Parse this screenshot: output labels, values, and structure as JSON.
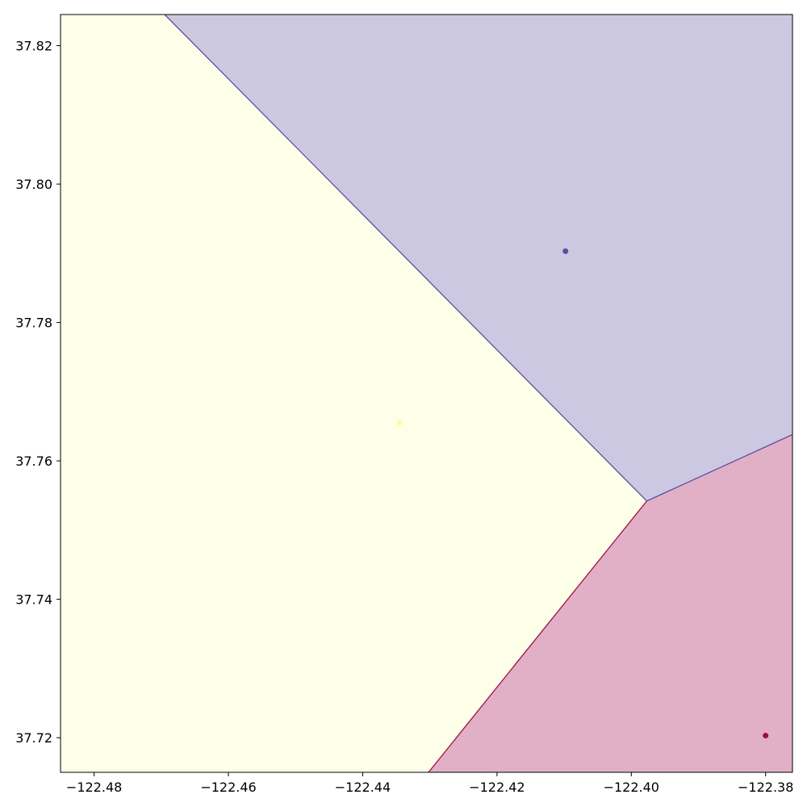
{
  "chart_data": {
    "type": "scatter",
    "subtype": "voronoi-map",
    "title": "",
    "xlabel": "",
    "ylabel": "",
    "xlim": [
      -122.485,
      -122.376
    ],
    "ylim": [
      37.715,
      37.8245
    ],
    "grid": false,
    "legend": "none",
    "x_ticks": [
      -122.48,
      -122.46,
      -122.44,
      -122.42,
      -122.4,
      -122.38
    ],
    "x_tick_labels": [
      "−122.48",
      "−122.46",
      "−122.44",
      "−122.42",
      "−122.40",
      "−122.38"
    ],
    "y_ticks": [
      37.72,
      37.74,
      37.76,
      37.78,
      37.8,
      37.82
    ],
    "y_tick_labels": [
      "37.72",
      "37.74",
      "37.76",
      "37.78",
      "37.80",
      "37.82"
    ],
    "series": [
      {
        "color": "#fbfe9a",
        "fill": "#feffe9",
        "point": {
          "x": -122.4345,
          "y": 37.7655
        },
        "polygon": [
          [
            -122.485,
            37.715
          ],
          [
            -122.485,
            37.8245
          ],
          [
            -122.4695,
            37.8245
          ],
          [
            -122.3977,
            37.7542
          ],
          [
            -122.4302,
            37.715
          ]
        ]
      },
      {
        "color": "#5c4f9d",
        "fill": "#cdc8e2",
        "point": {
          "x": -122.4098,
          "y": 37.7903
        },
        "polygon": [
          [
            -122.4695,
            37.8245
          ],
          [
            -122.376,
            37.8245
          ],
          [
            -122.376,
            37.7638
          ],
          [
            -122.3977,
            37.7542
          ]
        ]
      },
      {
        "color": "#a00d45",
        "fill": "#e1b0c6",
        "point": {
          "x": -122.38,
          "y": 37.7203
        },
        "polygon": [
          [
            -122.4302,
            37.715
          ],
          [
            -122.3977,
            37.7542
          ],
          [
            -122.376,
            37.7638
          ],
          [
            -122.376,
            37.715
          ]
        ]
      }
    ]
  }
}
